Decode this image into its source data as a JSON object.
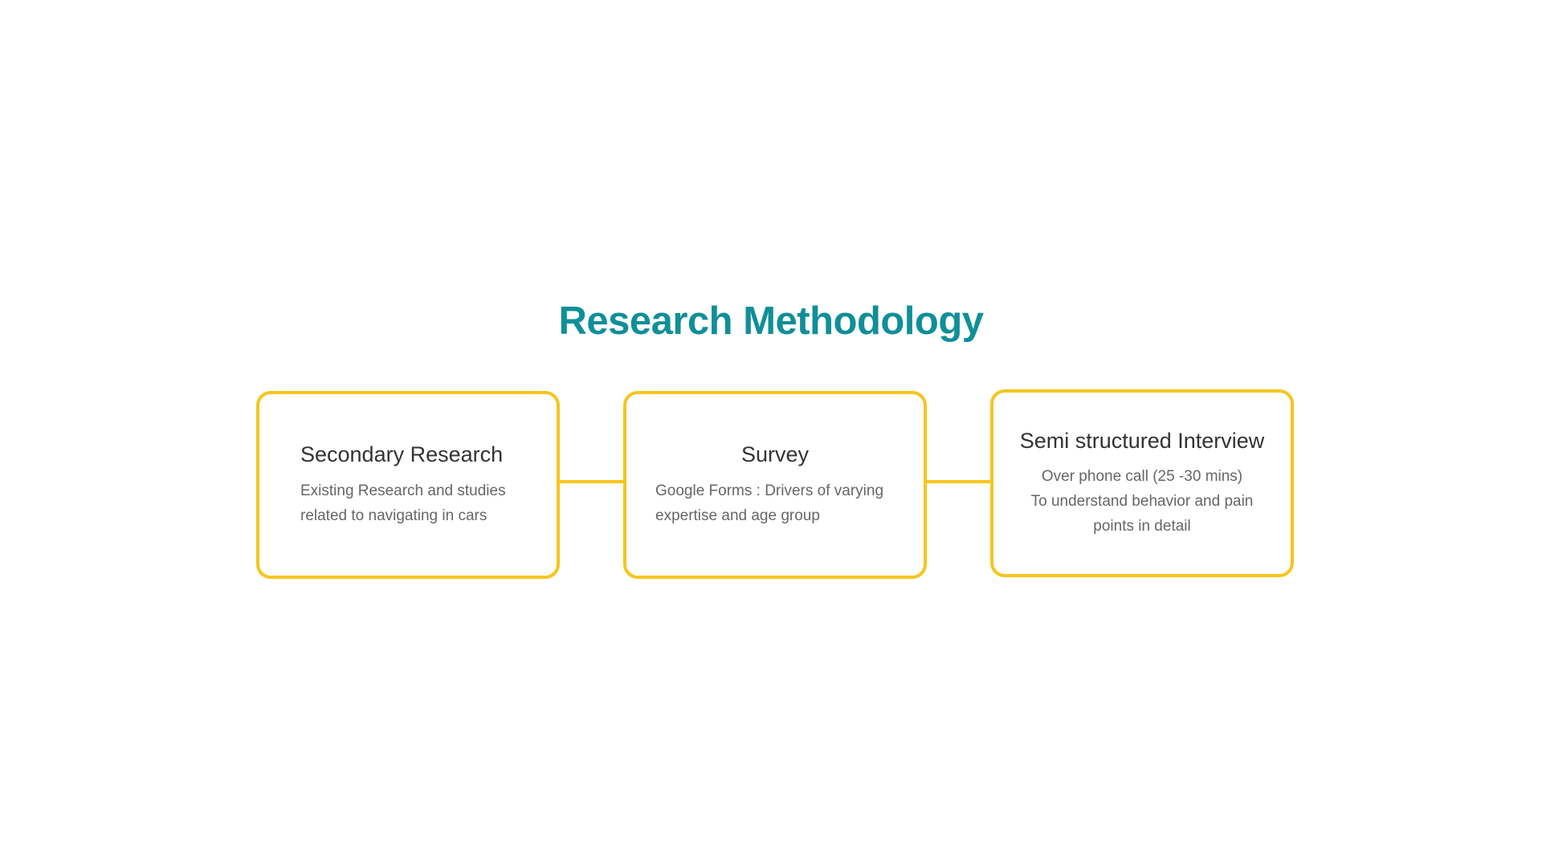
{
  "title": "Research Methodology",
  "colors": {
    "title": "#108f98",
    "border": "#f7c51e",
    "heading": "#333333",
    "body_text": "#666666"
  },
  "steps": [
    {
      "heading": "Secondary Research",
      "lines": [
        "Existing Research and studies",
        "related to navigating in cars"
      ]
    },
    {
      "heading": "Survey",
      "lines": [
        "Google Forms : Drivers of varying",
        "expertise and age group"
      ]
    },
    {
      "heading": "Semi structured Interview",
      "lines": [
        "Over phone call (25 -30 mins)",
        "To understand behavior and pain",
        "points in detail"
      ]
    }
  ]
}
